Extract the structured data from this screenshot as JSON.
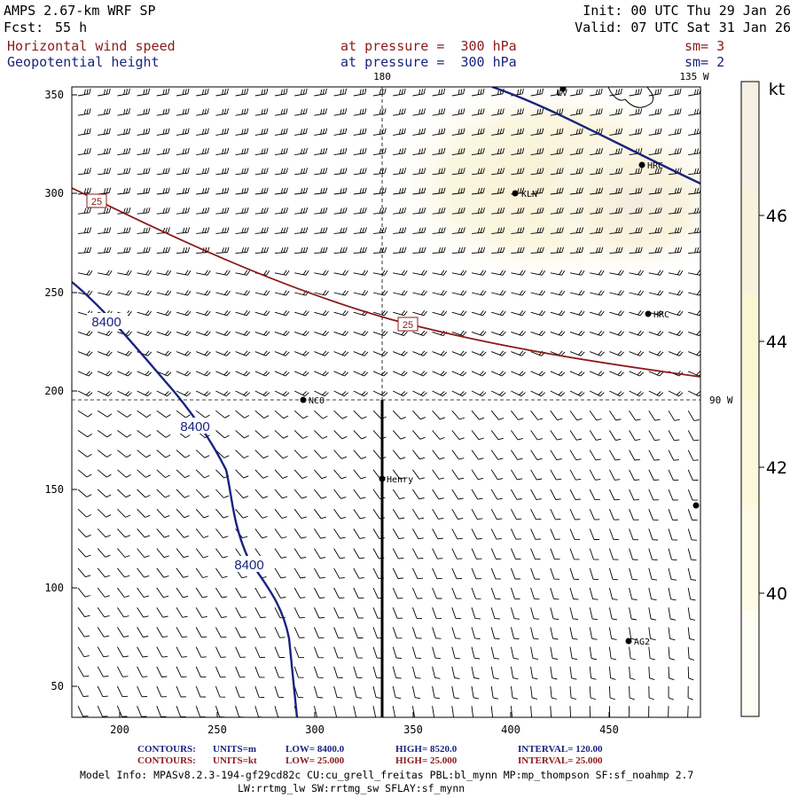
{
  "header": {
    "model": "AMPS 2.67-km WRF SP",
    "fcst_label": "Fcst:",
    "fcst_value": "55 h",
    "init": "Init: 00 UTC Thu 29 Jan 26",
    "valid": "Valid: 07 UTC Sat 31 Jan 26",
    "field1": "Horizontal wind speed",
    "field1_level": "at pressure =  300 hPa",
    "field1_sm": "sm= 3",
    "field2": "Geopotential height",
    "field2_level": "at pressure =  300 hPa",
    "field2_sm": "sm= 2"
  },
  "map": {
    "x_ticks": [
      "200",
      "250",
      "300",
      "350",
      "400",
      "450"
    ],
    "y_ticks": [
      "350",
      "300",
      "250",
      "200",
      "150",
      "100",
      "50"
    ],
    "meridian_labels": [
      "180",
      "135 W",
      "90 W"
    ],
    "contour_labels_height": [
      "8400",
      "8400",
      "8400"
    ],
    "contour_labels_wind": [
      "25",
      "25"
    ],
    "stations": [
      "NCO",
      "Henry",
      "KLN",
      "HRC",
      "HRC",
      "AG2",
      "LV"
    ]
  },
  "colorbar": {
    "unit": "kt",
    "labels": [
      "46",
      "44",
      "42",
      "40"
    ],
    "colors": [
      "#f6efe4",
      "#f8f2dc",
      "#faf5d3",
      "#fcf8d9",
      "#fdfbe6",
      "#fefdf3"
    ]
  },
  "footer": {
    "contours_label": "CONTOURS:",
    "height_units": "UNITS=m",
    "height_low": "LOW=  8400.0",
    "height_high": "HIGH=  8520.0",
    "height_interval": "INTERVAL=   120.00",
    "wind_units": "UNITS=kt",
    "wind_low": "LOW=  25.000",
    "wind_high": "HIGH=  25.000",
    "wind_interval": "INTERVAL=   25.000",
    "model_info": "Model Info: MPASv8.2.3-194-gf29cd82c CU:cu_grell_freitas PBL:bl_mynn MP:mp_thompson SF:sf_noahmp 2.7",
    "model_info2": "LW:rrtmg_lw SW:rrtmg_sw SFLAY:sf_mynn"
  }
}
